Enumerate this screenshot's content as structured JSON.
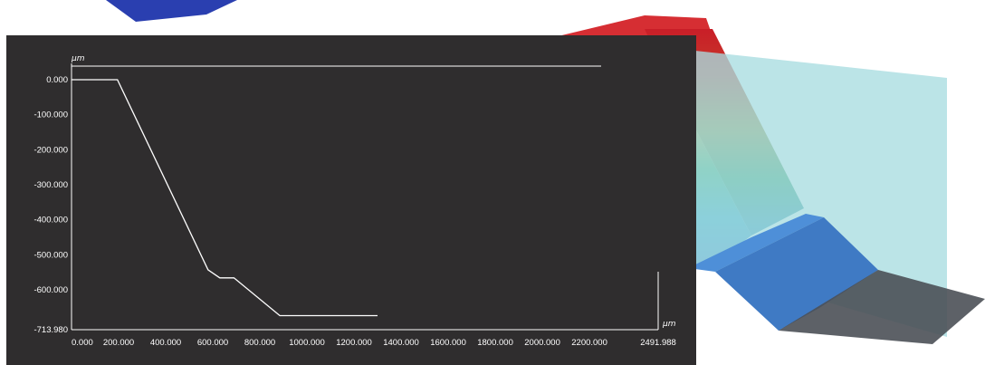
{
  "viewer": {
    "y_unit": "μm",
    "x_unit": "μm"
  },
  "chart_data": {
    "type": "line",
    "title": "",
    "xlabel": "μm",
    "ylabel": "μm",
    "xlim": [
      0,
      2491.988
    ],
    "ylim": [
      -713.98,
      0
    ],
    "x_ticks": [
      "0.000",
      "200.000",
      "400.000",
      "600.000",
      "800.000",
      "1000.000",
      "1200.000",
      "1400.000",
      "1600.000",
      "1800.000",
      "2000.000",
      "2200.000",
      "2491.988"
    ],
    "x_tick_values": [
      0,
      200,
      400,
      600,
      800,
      1000,
      1200,
      1400,
      1600,
      1800,
      2000,
      2200,
      2491.988
    ],
    "y_ticks": [
      "0.000",
      "-100.000",
      "-200.000",
      "-300.000",
      "-400.000",
      "-500.000",
      "-600.000",
      "-713.980"
    ],
    "y_tick_values": [
      0,
      -100,
      -200,
      -300,
      -400,
      -500,
      -600,
      -713.98
    ],
    "grid": false,
    "series": [
      {
        "color": "#ffffff",
        "points": [
          [
            0,
            0
          ],
          [
            195,
            0
          ],
          [
            580,
            -543
          ],
          [
            630,
            -566
          ],
          [
            690,
            -566
          ],
          [
            885,
            -674
          ],
          [
            1300,
            -674
          ]
        ]
      }
    ]
  },
  "colors": {
    "panel_bg": "#2f2d2e",
    "axis": "#ffffff",
    "plane": "#a8dde0"
  }
}
